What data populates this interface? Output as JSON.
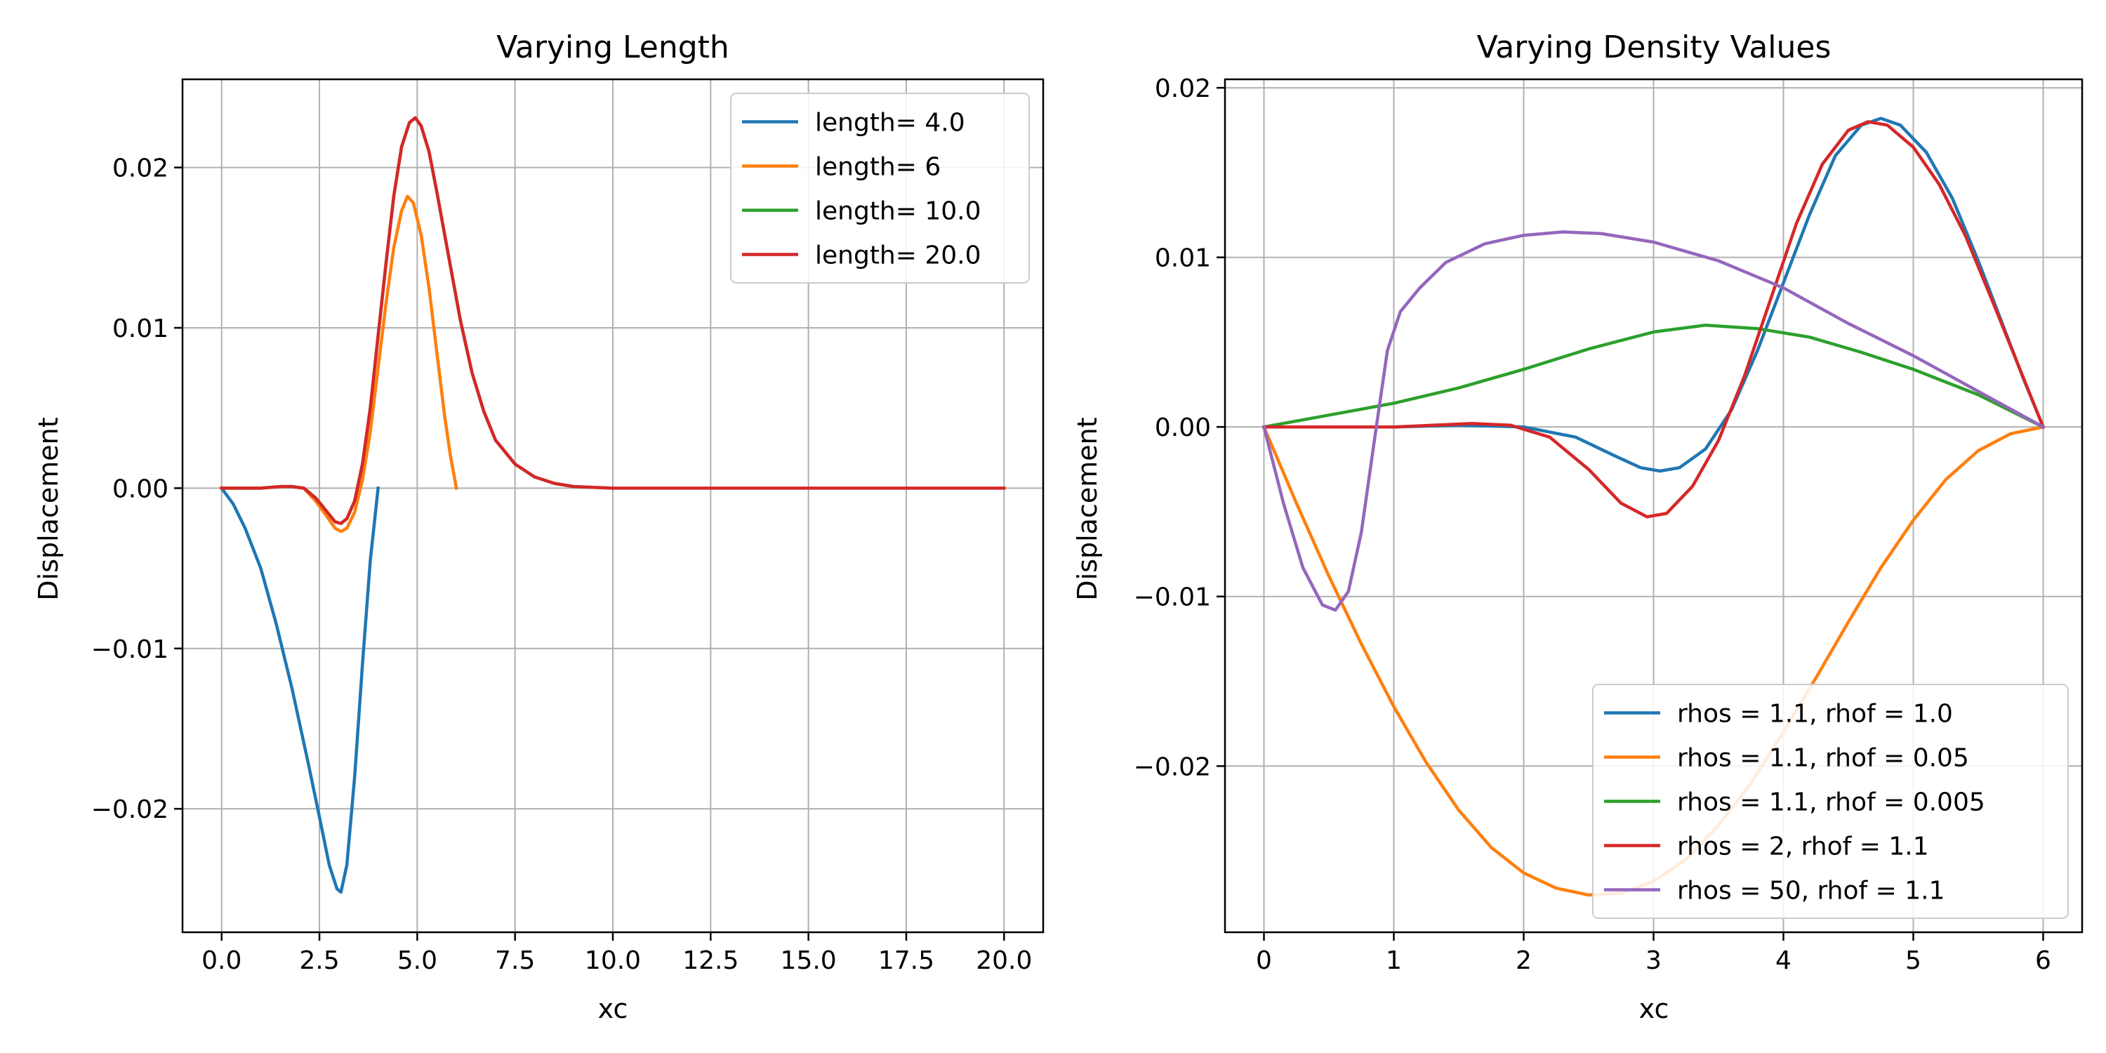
{
  "chart_data": [
    {
      "type": "line",
      "title": "Varying Length",
      "xlabel": "xc",
      "ylabel": "Displacement",
      "xlim": [
        -1.0,
        21.0
      ],
      "ylim": [
        -0.0277,
        0.0255
      ],
      "grid": true,
      "legend_position": "upper right",
      "xticks": [
        0,
        2.5,
        5,
        7.5,
        10,
        12.5,
        15,
        17.5,
        20
      ],
      "xtick_labels": [
        "0.0",
        "2.5",
        "5.0",
        "7.5",
        "10.0",
        "12.5",
        "15.0",
        "17.5",
        "20.0"
      ],
      "yticks": [
        -0.02,
        -0.01,
        0,
        0.01,
        0.02
      ],
      "ytick_labels": [
        "−0.02",
        "−0.01",
        "0.00",
        "0.01",
        "0.02"
      ],
      "series": [
        {
          "name": "length= 4.0",
          "color": "#1f77b4",
          "points": [
            [
              0,
              0
            ],
            [
              0.3,
              -0.001
            ],
            [
              0.6,
              -0.0025
            ],
            [
              1.0,
              -0.005
            ],
            [
              1.4,
              -0.0085
            ],
            [
              1.8,
              -0.0125
            ],
            [
              2.2,
              -0.017
            ],
            [
              2.5,
              -0.0205
            ],
            [
              2.75,
              -0.0235
            ],
            [
              2.95,
              -0.025
            ],
            [
              3.05,
              -0.0252
            ],
            [
              3.2,
              -0.0235
            ],
            [
              3.4,
              -0.018
            ],
            [
              3.6,
              -0.011
            ],
            [
              3.8,
              -0.0045
            ],
            [
              4.0,
              0
            ]
          ]
        },
        {
          "name": "length= 6",
          "color": "#ff7f0e",
          "points": [
            [
              0,
              0
            ],
            [
              0.5,
              0
            ],
            [
              1.0,
              0
            ],
            [
              1.5,
              0.0001
            ],
            [
              1.8,
              0.0001
            ],
            [
              2.1,
              0
            ],
            [
              2.4,
              -0.0008
            ],
            [
              2.7,
              -0.0018
            ],
            [
              2.9,
              -0.0025
            ],
            [
              3.05,
              -0.0027
            ],
            [
              3.2,
              -0.0025
            ],
            [
              3.4,
              -0.0015
            ],
            [
              3.6,
              0.0005
            ],
            [
              3.8,
              0.0035
            ],
            [
              4.0,
              0.0075
            ],
            [
              4.2,
              0.0115
            ],
            [
              4.4,
              0.015
            ],
            [
              4.6,
              0.0173
            ],
            [
              4.75,
              0.0182
            ],
            [
              4.9,
              0.0178
            ],
            [
              5.1,
              0.0158
            ],
            [
              5.3,
              0.0125
            ],
            [
              5.5,
              0.0085
            ],
            [
              5.7,
              0.0045
            ],
            [
              5.85,
              0.002
            ],
            [
              6.0,
              0
            ]
          ]
        },
        {
          "name": "length= 10.0",
          "color": "#2ca02c",
          "points": [
            [
              0,
              0
            ],
            [
              0.5,
              0
            ],
            [
              1.0,
              0
            ],
            [
              1.5,
              0.0001
            ],
            [
              1.8,
              0.0001
            ],
            [
              2.1,
              0
            ],
            [
              2.4,
              -0.0006
            ],
            [
              2.7,
              -0.0015
            ],
            [
              2.9,
              -0.0021
            ],
            [
              3.05,
              -0.0022
            ],
            [
              3.2,
              -0.0019
            ],
            [
              3.4,
              -0.0008
            ],
            [
              3.6,
              0.0015
            ],
            [
              3.8,
              0.005
            ],
            [
              4.0,
              0.0095
            ],
            [
              4.2,
              0.014
            ],
            [
              4.4,
              0.0182
            ],
            [
              4.6,
              0.0213
            ],
            [
              4.8,
              0.0228
            ],
            [
              4.95,
              0.0231
            ],
            [
              5.1,
              0.0226
            ],
            [
              5.3,
              0.021
            ],
            [
              5.5,
              0.0185
            ],
            [
              5.8,
              0.0145
            ],
            [
              6.1,
              0.0105
            ],
            [
              6.4,
              0.0072
            ],
            [
              6.7,
              0.0048
            ],
            [
              7.0,
              0.003
            ],
            [
              7.5,
              0.0015
            ],
            [
              8.0,
              0.0007
            ],
            [
              8.5,
              0.0003
            ],
            [
              9.0,
              0.0001
            ],
            [
              10.0,
              0
            ]
          ]
        },
        {
          "name": "length= 20.0",
          "color": "#d62728",
          "points": [
            [
              0,
              0
            ],
            [
              0.5,
              0
            ],
            [
              1.0,
              0
            ],
            [
              1.5,
              0.0001
            ],
            [
              1.8,
              0.0001
            ],
            [
              2.1,
              0
            ],
            [
              2.4,
              -0.0006
            ],
            [
              2.7,
              -0.0015
            ],
            [
              2.9,
              -0.0021
            ],
            [
              3.05,
              -0.0022
            ],
            [
              3.2,
              -0.0019
            ],
            [
              3.4,
              -0.0008
            ],
            [
              3.6,
              0.0015
            ],
            [
              3.8,
              0.005
            ],
            [
              4.0,
              0.0095
            ],
            [
              4.2,
              0.014
            ],
            [
              4.4,
              0.0182
            ],
            [
              4.6,
              0.0213
            ],
            [
              4.8,
              0.0228
            ],
            [
              4.95,
              0.0231
            ],
            [
              5.1,
              0.0226
            ],
            [
              5.3,
              0.021
            ],
            [
              5.5,
              0.0185
            ],
            [
              5.8,
              0.0145
            ],
            [
              6.1,
              0.0105
            ],
            [
              6.4,
              0.0072
            ],
            [
              6.7,
              0.0048
            ],
            [
              7.0,
              0.003
            ],
            [
              7.5,
              0.0015
            ],
            [
              8.0,
              0.0007
            ],
            [
              8.5,
              0.0003
            ],
            [
              9.0,
              0.0001
            ],
            [
              10.0,
              0
            ],
            [
              12.5,
              0
            ],
            [
              15.0,
              0
            ],
            [
              17.5,
              0
            ],
            [
              20.0,
              0
            ]
          ]
        }
      ]
    },
    {
      "type": "line",
      "title": "Varying Density Values",
      "xlabel": "xc",
      "ylabel": "Displacement",
      "xlim": [
        -0.3,
        6.3
      ],
      "ylim": [
        -0.0298,
        0.0205
      ],
      "grid": true,
      "legend_position": "lower right",
      "xticks": [
        0,
        1,
        2,
        3,
        4,
        5,
        6
      ],
      "xtick_labels": [
        "0",
        "1",
        "2",
        "3",
        "4",
        "5",
        "6"
      ],
      "yticks": [
        -0.02,
        -0.01,
        0,
        0.01,
        0.02
      ],
      "ytick_labels": [
        "−0.02",
        "−0.01",
        "0.00",
        "0.01",
        "0.02"
      ],
      "series": [
        {
          "name": "rhos = 1.1, rhof = 1.0",
          "color": "#1f77b4",
          "points": [
            [
              0,
              0
            ],
            [
              0.5,
              0
            ],
            [
              1.0,
              0
            ],
            [
              1.5,
              0.0001
            ],
            [
              2.0,
              0
            ],
            [
              2.4,
              -0.0006
            ],
            [
              2.7,
              -0.0017
            ],
            [
              2.9,
              -0.0024
            ],
            [
              3.05,
              -0.0026
            ],
            [
              3.2,
              -0.0024
            ],
            [
              3.4,
              -0.0013
            ],
            [
              3.6,
              0.001
            ],
            [
              3.8,
              0.0045
            ],
            [
              4.0,
              0.0085
            ],
            [
              4.2,
              0.0125
            ],
            [
              4.4,
              0.016
            ],
            [
              4.6,
              0.0178
            ],
            [
              4.75,
              0.0182
            ],
            [
              4.9,
              0.0178
            ],
            [
              5.1,
              0.0162
            ],
            [
              5.3,
              0.0135
            ],
            [
              5.5,
              0.0098
            ],
            [
              5.7,
              0.0058
            ],
            [
              5.85,
              0.0028
            ],
            [
              6.0,
              0
            ]
          ]
        },
        {
          "name": "rhos = 1.1, rhof = 0.05",
          "color": "#ff7f0e",
          "points": [
            [
              0,
              0
            ],
            [
              0.25,
              -0.0045
            ],
            [
              0.5,
              -0.0088
            ],
            [
              0.75,
              -0.0128
            ],
            [
              1.0,
              -0.0165
            ],
            [
              1.25,
              -0.0198
            ],
            [
              1.5,
              -0.0226
            ],
            [
              1.75,
              -0.0248
            ],
            [
              2.0,
              -0.0263
            ],
            [
              2.25,
              -0.0272
            ],
            [
              2.5,
              -0.0276
            ],
            [
              2.75,
              -0.0275
            ],
            [
              3.0,
              -0.0268
            ],
            [
              3.25,
              -0.0255
            ],
            [
              3.5,
              -0.0235
            ],
            [
              3.75,
              -0.021
            ],
            [
              4.0,
              -0.018
            ],
            [
              4.25,
              -0.0148
            ],
            [
              4.5,
              -0.0115
            ],
            [
              4.75,
              -0.0083
            ],
            [
              5.0,
              -0.0055
            ],
            [
              5.25,
              -0.0031
            ],
            [
              5.5,
              -0.0014
            ],
            [
              5.75,
              -0.0004
            ],
            [
              6.0,
              0
            ]
          ]
        },
        {
          "name": "rhos = 1.1, rhof = 0.005",
          "color": "#2ca02c",
          "points": [
            [
              0,
              0
            ],
            [
              0.5,
              0.0007
            ],
            [
              1.0,
              0.0014
            ],
            [
              1.5,
              0.0023
            ],
            [
              2.0,
              0.0034
            ],
            [
              2.5,
              0.0046
            ],
            [
              3.0,
              0.0056
            ],
            [
              3.4,
              0.006
            ],
            [
              3.8,
              0.0058
            ],
            [
              4.2,
              0.0053
            ],
            [
              4.6,
              0.0044
            ],
            [
              5.0,
              0.0034
            ],
            [
              5.5,
              0.0019
            ],
            [
              6.0,
              0
            ]
          ]
        },
        {
          "name": "rhos = 2, rhof = 1.1",
          "color": "#d62728",
          "points": [
            [
              0,
              0
            ],
            [
              0.5,
              0
            ],
            [
              1.0,
              0
            ],
            [
              1.3,
              0.0001
            ],
            [
              1.6,
              0.0002
            ],
            [
              1.9,
              0.0001
            ],
            [
              2.2,
              -0.0006
            ],
            [
              2.5,
              -0.0025
            ],
            [
              2.75,
              -0.0045
            ],
            [
              2.95,
              -0.0053
            ],
            [
              3.1,
              -0.0051
            ],
            [
              3.3,
              -0.0035
            ],
            [
              3.5,
              -0.0008
            ],
            [
              3.7,
              0.003
            ],
            [
              3.9,
              0.0075
            ],
            [
              4.1,
              0.012
            ],
            [
              4.3,
              0.0155
            ],
            [
              4.5,
              0.0175
            ],
            [
              4.65,
              0.018
            ],
            [
              4.8,
              0.0178
            ],
            [
              5.0,
              0.0165
            ],
            [
              5.2,
              0.0143
            ],
            [
              5.4,
              0.0113
            ],
            [
              5.6,
              0.0076
            ],
            [
              5.8,
              0.0038
            ],
            [
              6.0,
              0
            ]
          ]
        },
        {
          "name": "rhos = 50, rhof = 1.1",
          "color": "#9467bd",
          "points": [
            [
              0,
              0
            ],
            [
              0.15,
              -0.0045
            ],
            [
              0.3,
              -0.0083
            ],
            [
              0.45,
              -0.0105
            ],
            [
              0.55,
              -0.0108
            ],
            [
              0.65,
              -0.0097
            ],
            [
              0.75,
              -0.0062
            ],
            [
              0.85,
              -0.0008
            ],
            [
              0.95,
              0.0045
            ],
            [
              1.05,
              0.0068
            ],
            [
              1.2,
              0.0082
            ],
            [
              1.4,
              0.0097
            ],
            [
              1.7,
              0.0108
            ],
            [
              2.0,
              0.0113
            ],
            [
              2.3,
              0.0115
            ],
            [
              2.6,
              0.0114
            ],
            [
              3.0,
              0.0109
            ],
            [
              3.5,
              0.0098
            ],
            [
              4.0,
              0.0082
            ],
            [
              4.5,
              0.0061
            ],
            [
              5.0,
              0.0042
            ],
            [
              5.5,
              0.0021
            ],
            [
              6.0,
              0
            ]
          ]
        }
      ]
    }
  ]
}
